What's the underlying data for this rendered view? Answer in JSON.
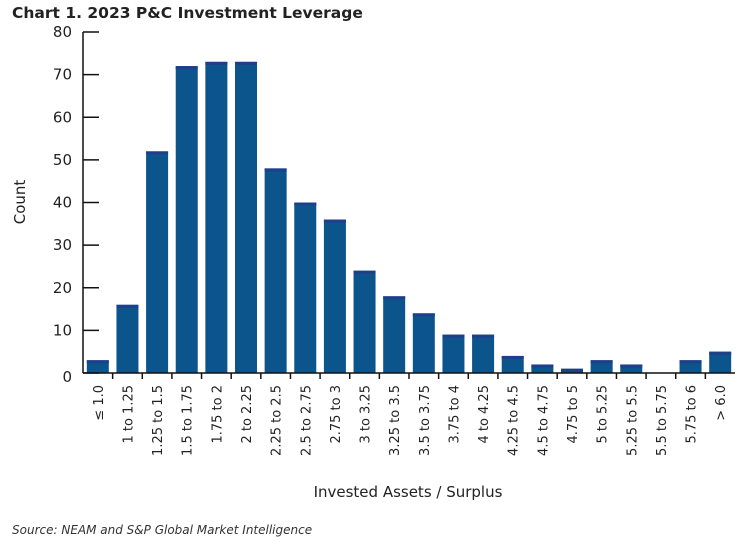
{
  "chart_data": {
    "type": "bar",
    "title": "Chart 1. 2023 P&C Investment Leverage",
    "xlabel": "Invested Assets / Surplus",
    "ylabel": "Count",
    "ylim": [
      0,
      80
    ],
    "yticks": [
      0,
      10,
      20,
      30,
      40,
      50,
      60,
      70,
      80
    ],
    "grid": false,
    "categories": [
      "≤ 1.0",
      "1 to 1.25",
      "1.25 to 1.5",
      "1.5 to 1.75",
      "1.75 to 2",
      "2 to 2.25",
      "2.25 to 2.5",
      "2.5 to 2.75",
      "2.75 to 3",
      "3 to 3.25",
      "3.25 to 3.5",
      "3.5 to 3.75",
      "3.75 to 4",
      "4 to 4.25",
      "4.25 to 4.5",
      "4.5 to 4.75",
      "4.75 to 5",
      "5 to 5.25",
      "5.25 to 5.5",
      "5.5 to 5.75",
      "5.75 to 6",
      "> 6.0"
    ],
    "values": [
      3,
      16,
      52,
      72,
      73,
      73,
      48,
      40,
      36,
      24,
      18,
      14,
      9,
      9,
      4,
      2,
      1,
      3,
      2,
      0,
      3,
      5
    ],
    "bar_color": "#0b548c",
    "bar_edge_color": "#1f3f8a"
  },
  "source": "Source: NEAM and S&P Global Market Intelligence"
}
